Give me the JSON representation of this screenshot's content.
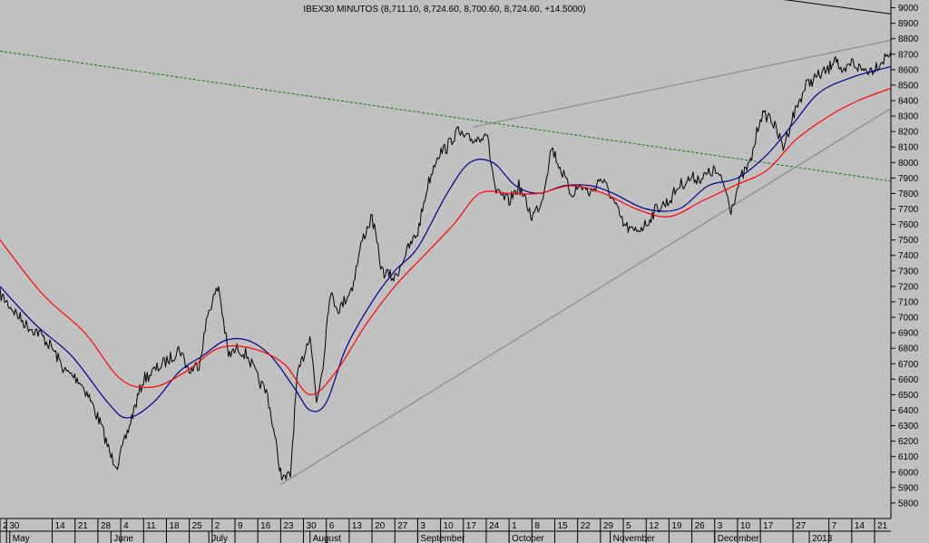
{
  "chart_data": {
    "type": "line",
    "title": "IBEX30 MINUTOS (8,711.10, 8,724.60, 8,700.60, 8,724.60, +14.5000)",
    "xlabel": "",
    "ylabel": "",
    "ylim": [
      5700,
      9050
    ],
    "xlim": [
      "2012-04-28",
      "2013-01-26"
    ],
    "grid": false,
    "y_ticks": [
      5800,
      5900,
      6000,
      6100,
      6200,
      6300,
      6400,
      6500,
      6600,
      6700,
      6800,
      6900,
      7000,
      7100,
      7200,
      7300,
      7400,
      7500,
      7600,
      7700,
      7800,
      7900,
      8000,
      8100,
      8200,
      8300,
      8400,
      8500,
      8600,
      8700,
      8800,
      8900,
      9000
    ],
    "day_ticks": [
      {
        "label": "2",
        "date": "2012-04-28"
      },
      {
        "label": "30",
        "date": "2012-04-30"
      },
      {
        "label": "14",
        "date": "2012-05-14"
      },
      {
        "label": "21",
        "date": "2012-05-21"
      },
      {
        "label": "28",
        "date": "2012-05-28"
      },
      {
        "label": "4",
        "date": "2012-06-04"
      },
      {
        "label": "11",
        "date": "2012-06-11"
      },
      {
        "label": "18",
        "date": "2012-06-18"
      },
      {
        "label": "25",
        "date": "2012-06-25"
      },
      {
        "label": "2",
        "date": "2012-07-02"
      },
      {
        "label": "9",
        "date": "2012-07-09"
      },
      {
        "label": "16",
        "date": "2012-07-16"
      },
      {
        "label": "23",
        "date": "2012-07-23"
      },
      {
        "label": "30",
        "date": "2012-07-30"
      },
      {
        "label": "6",
        "date": "2012-08-06"
      },
      {
        "label": "13",
        "date": "2012-08-13"
      },
      {
        "label": "20",
        "date": "2012-08-20"
      },
      {
        "label": "27",
        "date": "2012-08-27"
      },
      {
        "label": "3",
        "date": "2012-09-03"
      },
      {
        "label": "10",
        "date": "2012-09-10"
      },
      {
        "label": "17",
        "date": "2012-09-17"
      },
      {
        "label": "24",
        "date": "2012-09-24"
      },
      {
        "label": "1",
        "date": "2012-10-01"
      },
      {
        "label": "8",
        "date": "2012-10-08"
      },
      {
        "label": "15",
        "date": "2012-10-15"
      },
      {
        "label": "22",
        "date": "2012-10-22"
      },
      {
        "label": "29",
        "date": "2012-10-29"
      },
      {
        "label": "5",
        "date": "2012-11-05"
      },
      {
        "label": "12",
        "date": "2012-11-12"
      },
      {
        "label": "19",
        "date": "2012-11-19"
      },
      {
        "label": "26",
        "date": "2012-11-26"
      },
      {
        "label": "3",
        "date": "2012-12-03"
      },
      {
        "label": "10",
        "date": "2012-12-10"
      },
      {
        "label": "17",
        "date": "2012-12-17"
      },
      {
        "label": "27",
        "date": "2012-12-27"
      },
      {
        "label": "7",
        "date": "2013-01-07"
      },
      {
        "label": "14",
        "date": "2013-01-14"
      },
      {
        "label": "21",
        "date": "2013-01-21"
      }
    ],
    "month_labels": [
      {
        "label": "May",
        "date": "2012-05-01"
      },
      {
        "label": "June",
        "date": "2012-06-01"
      },
      {
        "label": "July",
        "date": "2012-07-01"
      },
      {
        "label": "August",
        "date": "2012-08-01"
      },
      {
        "label": "September",
        "date": "2012-09-03"
      },
      {
        "label": "October",
        "date": "2012-10-01"
      },
      {
        "label": "November",
        "date": "2012-11-01"
      },
      {
        "label": "December",
        "date": "2012-12-03"
      },
      {
        "label": "2013",
        "date": "2013-01-01"
      }
    ],
    "series": [
      {
        "color": "#000000",
        "x": [
          "2012-04-28",
          "2012-05-02",
          "2012-05-06",
          "2012-05-10",
          "2012-05-14",
          "2012-05-18",
          "2012-05-22",
          "2012-05-25",
          "2012-05-29",
          "2012-06-01",
          "2012-06-03",
          "2012-06-06",
          "2012-06-08",
          "2012-06-11",
          "2012-06-14",
          "2012-06-17",
          "2012-06-20",
          "2012-06-22",
          "2012-06-25",
          "2012-06-28",
          "2012-07-01",
          "2012-07-04",
          "2012-07-07",
          "2012-07-10",
          "2012-07-13",
          "2012-07-16",
          "2012-07-19",
          "2012-07-23",
          "2012-07-24",
          "2012-07-26",
          "2012-07-28",
          "2012-07-30",
          "2012-08-01",
          "2012-08-03",
          "2012-08-05",
          "2012-08-07",
          "2012-08-10",
          "2012-08-14",
          "2012-08-17",
          "2012-08-20",
          "2012-08-23",
          "2012-08-27",
          "2012-08-30",
          "2012-09-03",
          "2012-09-06",
          "2012-09-09",
          "2012-09-12",
          "2012-09-15",
          "2012-09-18",
          "2012-09-21",
          "2012-09-24",
          "2012-09-27",
          "2012-10-01",
          "2012-10-04",
          "2012-10-08",
          "2012-10-11",
          "2012-10-14",
          "2012-10-17",
          "2012-10-20",
          "2012-10-23",
          "2012-10-26",
          "2012-10-29",
          "2012-11-01",
          "2012-11-05",
          "2012-11-08",
          "2012-11-12",
          "2012-11-15",
          "2012-11-19",
          "2012-11-22",
          "2012-11-26",
          "2012-11-29",
          "2012-12-03",
          "2012-12-06",
          "2012-12-08",
          "2012-12-11",
          "2012-12-14",
          "2012-12-17",
          "2012-12-20",
          "2012-12-24",
          "2012-12-27",
          "2012-12-31",
          "2013-01-03",
          "2013-01-07",
          "2013-01-09",
          "2013-01-11",
          "2013-01-14",
          "2013-01-17",
          "2013-01-20",
          "2013-01-23",
          "2013-01-26"
        ],
        "values": [
          7150,
          7050,
          6950,
          6900,
          6800,
          6650,
          6600,
          6500,
          6300,
          6100,
          6050,
          6250,
          6400,
          6600,
          6650,
          6700,
          6750,
          6800,
          6650,
          6700,
          7050,
          7200,
          6750,
          6800,
          6750,
          6600,
          6500,
          6000,
          5950,
          5980,
          6600,
          6750,
          6900,
          6450,
          6700,
          7150,
          7050,
          7200,
          7500,
          7650,
          7300,
          7250,
          7400,
          7550,
          7850,
          8050,
          8100,
          8200,
          8150,
          8150,
          8200,
          7800,
          7750,
          7850,
          7650,
          7750,
          8100,
          7950,
          7800,
          7850,
          7800,
          7900,
          7800,
          7600,
          7550,
          7600,
          7700,
          7750,
          7850,
          7900,
          7900,
          7950,
          7850,
          7700,
          7900,
          8000,
          8300,
          8300,
          8100,
          8300,
          8500,
          8550,
          8600,
          8700,
          8550,
          8650,
          8600,
          8600,
          8650,
          8720
        ]
      },
      {
        "color": "#00008b",
        "x": [
          "2012-04-28",
          "2012-05-09",
          "2012-05-20",
          "2012-05-31",
          "2012-06-06",
          "2012-06-14",
          "2012-06-22",
          "2012-06-29",
          "2012-07-06",
          "2012-07-13",
          "2012-07-20",
          "2012-07-27",
          "2012-08-01",
          "2012-08-06",
          "2012-08-12",
          "2012-08-20",
          "2012-08-27",
          "2012-09-03",
          "2012-09-12",
          "2012-09-19",
          "2012-09-26",
          "2012-10-03",
          "2012-10-10",
          "2012-10-18",
          "2012-10-26",
          "2012-11-02",
          "2012-11-12",
          "2012-11-22",
          "2012-12-01",
          "2012-12-10",
          "2012-12-19",
          "2012-12-27",
          "2013-01-04",
          "2013-01-14",
          "2013-01-26"
        ],
        "values": [
          7200,
          6950,
          6750,
          6450,
          6350,
          6450,
          6650,
          6750,
          6850,
          6850,
          6750,
          6550,
          6400,
          6450,
          6800,
          7100,
          7300,
          7450,
          7800,
          8000,
          8000,
          7850,
          7800,
          7850,
          7850,
          7800,
          7700,
          7700,
          7850,
          7900,
          8050,
          8250,
          8450,
          8550,
          8620
        ]
      },
      {
        "color": "#ff0000",
        "x": [
          "2012-04-28",
          "2012-05-11",
          "2012-05-24",
          "2012-06-04",
          "2012-06-14",
          "2012-06-24",
          "2012-07-04",
          "2012-07-14",
          "2012-07-24",
          "2012-08-01",
          "2012-08-09",
          "2012-08-18",
          "2012-08-27",
          "2012-09-05",
          "2012-09-14",
          "2012-09-22",
          "2012-10-01",
          "2012-10-10",
          "2012-10-20",
          "2012-10-30",
          "2012-11-09",
          "2012-11-19",
          "2012-11-29",
          "2012-12-09",
          "2012-12-19",
          "2012-12-28",
          "2013-01-07",
          "2013-01-16",
          "2013-01-26"
        ],
        "values": [
          7500,
          7150,
          6900,
          6600,
          6550,
          6650,
          6800,
          6800,
          6700,
          6500,
          6650,
          6950,
          7200,
          7400,
          7600,
          7800,
          7800,
          7800,
          7850,
          7800,
          7700,
          7650,
          7750,
          7850,
          7950,
          8150,
          8300,
          8400,
          8480
        ]
      }
    ],
    "trendlines": [
      {
        "style": "dashed",
        "color": "#008000",
        "start": {
          "date": "2012-04-28",
          "value": 8720
        },
        "end": {
          "date": "2013-01-26",
          "value": 7880
        }
      },
      {
        "style": "solid",
        "color": "#808080",
        "start": {
          "date": "2012-07-23",
          "value": 5920
        },
        "end": {
          "date": "2013-01-26",
          "value": 8350
        }
      },
      {
        "style": "solid",
        "color": "#808080",
        "start": {
          "date": "2012-09-20",
          "value": 8230
        },
        "end": {
          "date": "2013-01-26",
          "value": 8790
        }
      },
      {
        "style": "solid",
        "color": "#000000",
        "start": {
          "date": "2012-12-11",
          "value": 9090
        },
        "end": {
          "date": "2013-01-26",
          "value": 8960
        }
      }
    ]
  }
}
